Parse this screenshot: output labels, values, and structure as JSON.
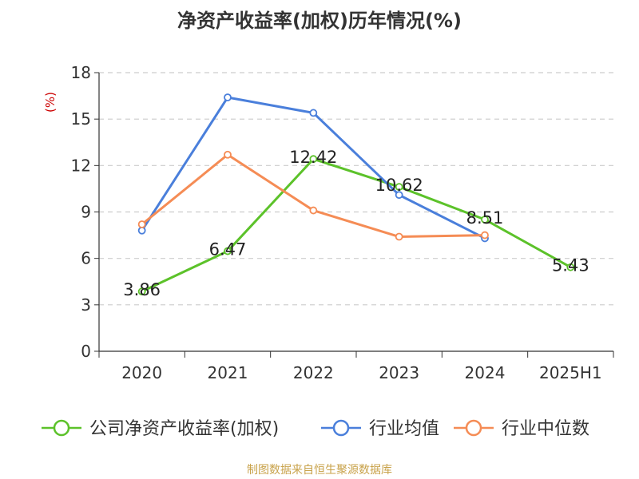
{
  "chart_data": {
    "type": "line",
    "title": "净资产收益率(加权)历年情况(%)",
    "ylabel": "(%)",
    "categories": [
      "2020",
      "2021",
      "2022",
      "2023",
      "2024",
      "2025H1"
    ],
    "ylim": [
      0,
      18
    ],
    "yticks": [
      0,
      3,
      6,
      9,
      12,
      15,
      18
    ],
    "grid": true,
    "legend_position": "bottom",
    "series": [
      {
        "name": "公司净资产收益率(加权)",
        "color": "#5cc22a",
        "values": [
          3.86,
          6.47,
          12.42,
          10.62,
          8.51,
          5.43
        ],
        "labels": true
      },
      {
        "name": "行业均值",
        "color": "#4a7fdb",
        "values": [
          7.8,
          16.4,
          15.4,
          10.1,
          7.3,
          null
        ],
        "labels": false
      },
      {
        "name": "行业中位数",
        "color": "#f58c55",
        "values": [
          8.2,
          12.7,
          9.1,
          7.4,
          7.5,
          null
        ],
        "labels": false
      }
    ]
  },
  "footer": {
    "source": "制图数据来自恒生聚源数据库"
  },
  "colors": {
    "axis": "#333333",
    "grid": "#cccccc",
    "ylabel": "#cc0000",
    "source": "#c8a24a"
  }
}
